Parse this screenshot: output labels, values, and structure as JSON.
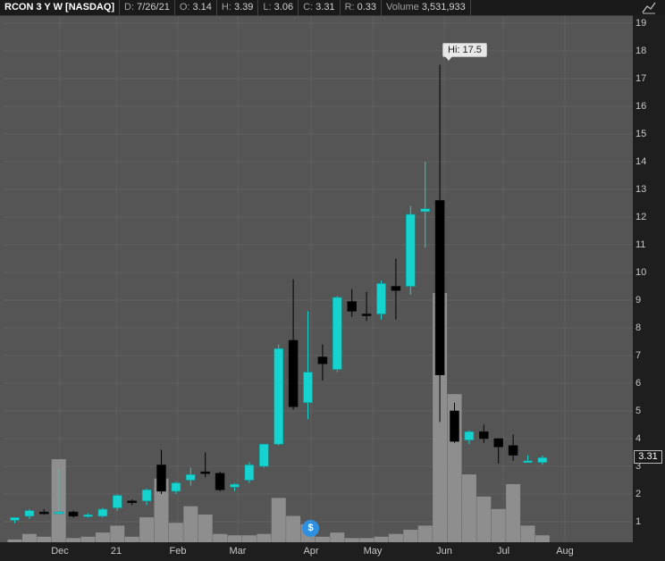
{
  "header": {
    "symbol": "RCON 3 Y W [NASDAQ]",
    "fields": [
      {
        "label": "D:",
        "value": "7/26/21"
      },
      {
        "label": "O:",
        "value": "3.14"
      },
      {
        "label": "H:",
        "value": "3.39"
      },
      {
        "label": "L:",
        "value": "3.06"
      },
      {
        "label": "C:",
        "value": "3.31"
      },
      {
        "label": "R:",
        "value": "0.33"
      },
      {
        "label": "Volume",
        "value": "3,531,933"
      }
    ]
  },
  "hi_label": "Hi: 17.5",
  "last_price": "3.31",
  "event_marker": "$",
  "colors": {
    "up": "#17d3cf",
    "down": "#000000",
    "volume": "#8e8e8e",
    "background": "#555555"
  },
  "chart_data": {
    "type": "candlestick",
    "ylim": [
      0,
      19.5
    ],
    "y_ticks": [
      "1",
      "2",
      "3",
      "4",
      "5",
      "6",
      "7",
      "8",
      "9",
      "10",
      "11",
      "12",
      "13",
      "14",
      "15",
      "16",
      "17",
      "18",
      "19"
    ],
    "x_ticks": [
      "Dec",
      "21",
      "Feb",
      "Mar",
      "Apr",
      "May",
      "Jun",
      "Jul",
      "Aug"
    ],
    "candles": [
      {
        "o": 1.05,
        "h": 1.15,
        "l": 0.95,
        "c": 1.15,
        "v": 0.1
      },
      {
        "o": 1.2,
        "h": 1.45,
        "l": 1.1,
        "c": 1.4,
        "v": 0.3
      },
      {
        "o": 1.35,
        "h": 1.45,
        "l": 1.25,
        "c": 1.3,
        "v": 0.2
      },
      {
        "o": 1.3,
        "h": 2.9,
        "l": 1.25,
        "c": 1.35,
        "v": 3.0
      },
      {
        "o": 1.35,
        "h": 1.4,
        "l": 1.15,
        "c": 1.2,
        "v": 0.15
      },
      {
        "o": 1.2,
        "h": 1.3,
        "l": 1.15,
        "c": 1.25,
        "v": 0.2
      },
      {
        "o": 1.2,
        "h": 1.5,
        "l": 1.15,
        "c": 1.45,
        "v": 0.35
      },
      {
        "o": 1.5,
        "h": 2.0,
        "l": 1.4,
        "c": 1.95,
        "v": 0.6
      },
      {
        "o": 1.75,
        "h": 1.8,
        "l": 1.6,
        "c": 1.7,
        "v": 0.2
      },
      {
        "o": 1.75,
        "h": 2.2,
        "l": 1.6,
        "c": 2.15,
        "v": 0.9
      },
      {
        "o": 3.05,
        "h": 3.6,
        "l": 2.0,
        "c": 2.1,
        "v": 2.3
      },
      {
        "o": 2.1,
        "h": 2.45,
        "l": 2.0,
        "c": 2.4,
        "v": 0.7
      },
      {
        "o": 2.5,
        "h": 2.95,
        "l": 2.3,
        "c": 2.7,
        "v": 1.3
      },
      {
        "o": 2.8,
        "h": 3.5,
        "l": 2.6,
        "c": 2.75,
        "v": 1.0
      },
      {
        "o": 2.75,
        "h": 2.8,
        "l": 2.1,
        "c": 2.15,
        "v": 0.3
      },
      {
        "o": 2.25,
        "h": 2.4,
        "l": 2.1,
        "c": 2.35,
        "v": 0.25
      },
      {
        "o": 2.5,
        "h": 3.15,
        "l": 2.4,
        "c": 3.05,
        "v": 0.25
      },
      {
        "o": 3.0,
        "h": 3.8,
        "l": 2.95,
        "c": 3.8,
        "v": 0.3
      },
      {
        "o": 3.8,
        "h": 7.4,
        "l": 3.75,
        "c": 7.25,
        "v": 1.6
      },
      {
        "o": 7.55,
        "h": 9.75,
        "l": 5.05,
        "c": 5.15,
        "v": 0.95
      },
      {
        "o": 5.3,
        "h": 8.6,
        "l": 4.7,
        "c": 6.4,
        "v": 0.65
      },
      {
        "o": 6.95,
        "h": 7.4,
        "l": 6.1,
        "c": 6.7,
        "v": 0.2
      },
      {
        "o": 6.5,
        "h": 9.15,
        "l": 6.4,
        "c": 9.1,
        "v": 0.35
      },
      {
        "o": 8.95,
        "h": 9.4,
        "l": 8.4,
        "c": 8.6,
        "v": 0.15
      },
      {
        "o": 8.5,
        "h": 9.3,
        "l": 8.25,
        "c": 8.45,
        "v": 0.15
      },
      {
        "o": 8.5,
        "h": 9.7,
        "l": 8.3,
        "c": 9.6,
        "v": 0.2
      },
      {
        "o": 9.5,
        "h": 10.5,
        "l": 8.3,
        "c": 9.35,
        "v": 0.3
      },
      {
        "o": 9.5,
        "h": 12.4,
        "l": 9.2,
        "c": 12.1,
        "v": 0.45
      },
      {
        "o": 12.2,
        "h": 14.0,
        "l": 10.9,
        "c": 12.3,
        "v": 0.6
      },
      {
        "o": 12.6,
        "h": 17.5,
        "l": 4.6,
        "c": 6.3,
        "v": 9.0
      },
      {
        "o": 5.0,
        "h": 5.3,
        "l": 3.85,
        "c": 3.9,
        "v": 5.35
      },
      {
        "o": 3.95,
        "h": 4.3,
        "l": 3.8,
        "c": 4.25,
        "v": 2.45
      },
      {
        "o": 4.25,
        "h": 4.5,
        "l": 3.85,
        "c": 4.0,
        "v": 1.65
      },
      {
        "o": 4.0,
        "h": 4.0,
        "l": 3.1,
        "c": 3.7,
        "v": 1.2
      },
      {
        "o": 3.75,
        "h": 4.15,
        "l": 3.2,
        "c": 3.4,
        "v": 2.1
      },
      {
        "o": 3.2,
        "h": 3.4,
        "l": 3.15,
        "c": 3.2,
        "v": 0.6
      },
      {
        "o": 3.14,
        "h": 3.39,
        "l": 3.06,
        "c": 3.31,
        "v": 0.25
      }
    ]
  }
}
